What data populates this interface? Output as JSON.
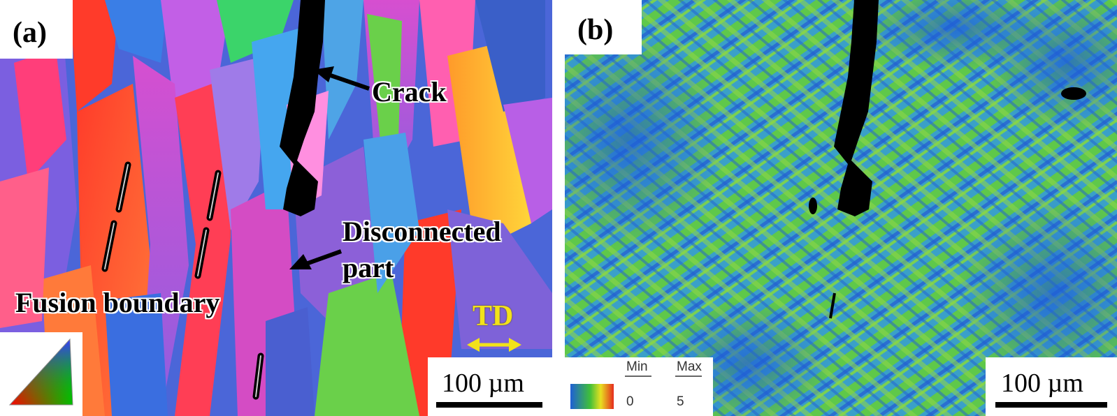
{
  "panel_a": {
    "label": "(a)",
    "annotations": {
      "crack": "Crack",
      "disconnected_line1": "Disconnected",
      "disconnected_line2": "part",
      "fusion_boundary": "Fusion boundary"
    },
    "direction_label": "TD",
    "scale_bar": "100 µm"
  },
  "panel_b": {
    "label": "(b)",
    "colorbar": {
      "min_label": "Min",
      "max_label": "Max",
      "min_value": "0",
      "max_value": "5"
    },
    "scale_bar": "100 µm"
  },
  "colors": {
    "crack": "#000000",
    "arrow": "#000000",
    "td_arrow": "#f2e21a",
    "kam_low": "#1e5fd6",
    "kam_mid": "#3fbf3a",
    "kam_high": "#e52b1e"
  }
}
